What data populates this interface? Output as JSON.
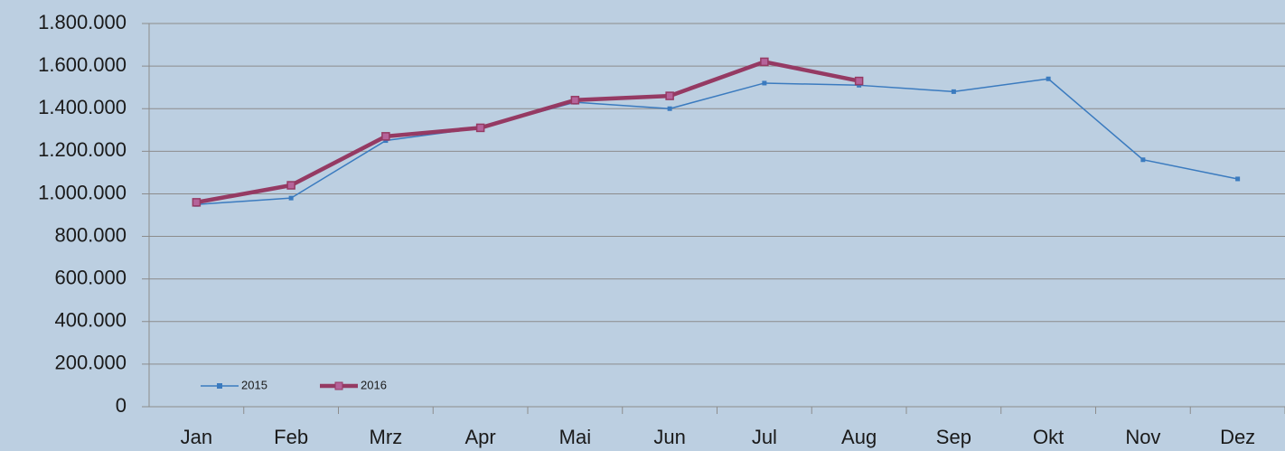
{
  "chart_data": {
    "type": "line",
    "categories": [
      "Jan",
      "Feb",
      "Mrz",
      "Apr",
      "Mai",
      "Jun",
      "Jul",
      "Aug",
      "Sep",
      "Okt",
      "Nov",
      "Dez"
    ],
    "series": [
      {
        "name": "2015",
        "color": "#3b7bbf",
        "values": [
          950000,
          980000,
          1250000,
          1310000,
          1430000,
          1400000,
          1520000,
          1510000,
          1480000,
          1540000,
          1160000,
          1070000
        ]
      },
      {
        "name": "2016",
        "color": "#953a63",
        "values": [
          960000,
          1040000,
          1270000,
          1310000,
          1440000,
          1460000,
          1620000,
          1530000,
          null,
          null,
          null,
          null
        ]
      }
    ],
    "ylim": [
      0,
      1800000
    ],
    "yticks": [
      0,
      {
        "value": 200000,
        "label": "200.000"
      },
      {
        "value": 400000,
        "label": "400.000"
      },
      {
        "value": 600000,
        "label": "600.000"
      },
      {
        "value": 800000,
        "label": "800.000"
      },
      {
        "value": 1000000,
        "label": "1.000.000"
      },
      {
        "value": 1200000,
        "label": "1.200.000"
      },
      {
        "value": 1400000,
        "label": "1.400.000"
      },
      {
        "value": 1600000,
        "label": "1.600.000"
      },
      {
        "value": 1800000,
        "label": "1.800.000"
      }
    ],
    "grid": true,
    "legend": "bottom-left"
  }
}
